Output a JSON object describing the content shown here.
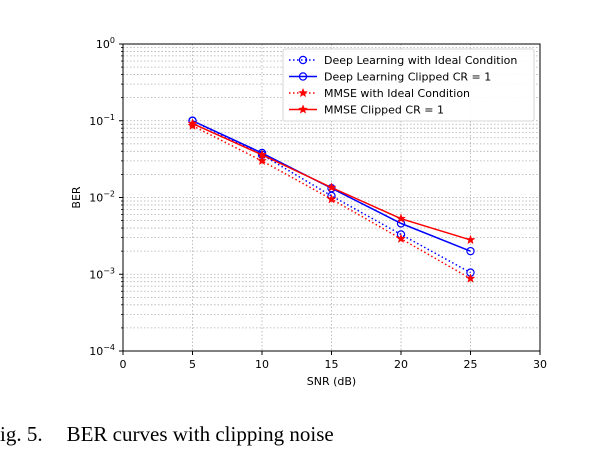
{
  "chart_data": {
    "type": "line",
    "title": "",
    "xlabel": "SNR (dB)",
    "ylabel": "BER",
    "xlim": [
      0,
      30
    ],
    "ylim": [
      0.0001,
      1
    ],
    "yscale": "log",
    "grid": true,
    "legend_position": "top-right",
    "x_ticks": [
      0,
      5,
      10,
      15,
      20,
      25,
      30
    ],
    "y_ticks": [
      {
        "value": 1,
        "base": "10",
        "exp": "0"
      },
      {
        "value": 0.1,
        "base": "10",
        "exp": "−1"
      },
      {
        "value": 0.01,
        "base": "10",
        "exp": "−2"
      },
      {
        "value": 0.001,
        "base": "10",
        "exp": "−3"
      },
      {
        "value": 0.0001,
        "base": "10",
        "exp": "−4"
      }
    ],
    "x": [
      5,
      10,
      15,
      20,
      25
    ],
    "series": [
      {
        "name": "Deep Learning with Ideal Condition",
        "values": [
          0.1,
          0.036,
          0.0105,
          0.0033,
          0.00105
        ],
        "color": "#0000ff",
        "line_style": "dotted",
        "marker": "circle-open"
      },
      {
        "name": "Deep Learning Clipped CR = 1",
        "values": [
          0.1,
          0.038,
          0.0132,
          0.0046,
          0.002
        ],
        "color": "#0000ff",
        "line_style": "solid",
        "marker": "circle-open"
      },
      {
        "name": "MMSE with Ideal Condition",
        "values": [
          0.086,
          0.03,
          0.0095,
          0.0029,
          0.00088
        ],
        "color": "#ff0000",
        "line_style": "dotted",
        "marker": "star"
      },
      {
        "name": "MMSE Clipped CR = 1",
        "values": [
          0.092,
          0.036,
          0.0135,
          0.0053,
          0.0028
        ],
        "color": "#ff0000",
        "line_style": "solid",
        "marker": "star"
      }
    ]
  },
  "caption": {
    "label": "ig. 5.",
    "text": "BER curves with clipping noise"
  }
}
